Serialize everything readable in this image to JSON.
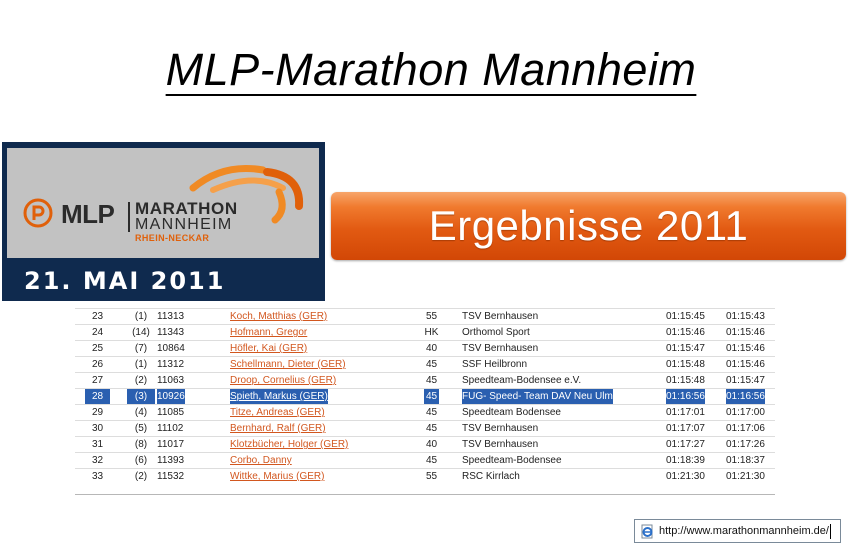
{
  "page": {
    "title": "MLP-Marathon Mannheim"
  },
  "logo": {
    "brand": "MLP",
    "line1": "MARATHON",
    "line2": "MANNHEIM",
    "region": "RHEIN-NECKAR",
    "date": "21. MAI 2011",
    "colors": {
      "panel": "#0f2a4e",
      "inner": "#c2c2c2",
      "accent": "#f08a24"
    }
  },
  "results_button": {
    "label": "Ergebnisse 2011",
    "color": "#e25a12"
  },
  "table": {
    "rows": [
      {
        "pos": "23",
        "ak": "(1)",
        "nr": "11313",
        "name": "Koch, Matthias (GER)",
        "cls": "55",
        "club": "TSV Bernhausen",
        "t1": "01:15:45",
        "t2": "01:15:43",
        "highlighted": false
      },
      {
        "pos": "24",
        "ak": "(14)",
        "nr": "11343",
        "name": "Hofmann, Gregor",
        "cls": "HK",
        "club": "Orthomol Sport",
        "t1": "01:15:46",
        "t2": "01:15:46",
        "highlighted": false
      },
      {
        "pos": "25",
        "ak": "(7)",
        "nr": "10864",
        "name": "Höfler, Kai (GER)",
        "cls": "40",
        "club": "TSV Bernhausen",
        "t1": "01:15:47",
        "t2": "01:15:46",
        "highlighted": false
      },
      {
        "pos": "26",
        "ak": "(1)",
        "nr": "11312",
        "name": "Schellmann, Dieter (GER)",
        "cls": "45",
        "club": "SSF Heilbronn",
        "t1": "01:15:48",
        "t2": "01:15:46",
        "highlighted": false
      },
      {
        "pos": "27",
        "ak": "(2)",
        "nr": "11063",
        "name": "Droop, Cornelius (GER)",
        "cls": "45",
        "club": "Speedteam-Bodensee e.V.",
        "t1": "01:15:48",
        "t2": "01:15:47",
        "highlighted": false
      },
      {
        "pos": "28",
        "ak": "(3)",
        "nr": "10926",
        "name": "Spieth, Markus (GER)",
        "cls": "45",
        "club": "FUG- Speed- Team DAV Neu Ulm",
        "t1": "01:16:56",
        "t2": "01:16:56",
        "highlighted": true
      },
      {
        "pos": "29",
        "ak": "(4)",
        "nr": "11085",
        "name": "Titze, Andreas (GER)",
        "cls": "45",
        "club": "Speedteam Bodensee",
        "t1": "01:17:01",
        "t2": "01:17:00",
        "highlighted": false
      },
      {
        "pos": "30",
        "ak": "(5)",
        "nr": "11102",
        "name": "Bernhard, Ralf (GER)",
        "cls": "45",
        "club": "TSV Bernhausen",
        "t1": "01:17:07",
        "t2": "01:17:06",
        "highlighted": false
      },
      {
        "pos": "31",
        "ak": "(8)",
        "nr": "11017",
        "name": "Klotzbücher, Holger (GER)",
        "cls": "40",
        "club": "TSV Bernhausen",
        "t1": "01:17:27",
        "t2": "01:17:26",
        "highlighted": false
      },
      {
        "pos": "32",
        "ak": "(6)",
        "nr": "11393",
        "name": "Corbo, Danny",
        "cls": "45",
        "club": "Speedteam-Bodensee",
        "t1": "01:18:39",
        "t2": "01:18:37",
        "highlighted": false
      },
      {
        "pos": "33",
        "ak": "(2)",
        "nr": "11532",
        "name": "Wittke, Marius (GER)",
        "cls": "55",
        "club": "RSC Kirrlach",
        "t1": "01:21:30",
        "t2": "01:21:30",
        "highlighted": false
      }
    ],
    "colors": {
      "link": "#d2571f",
      "highlight": "#2a5fb0"
    }
  },
  "urlbar": {
    "value": "http://www.marathonmannheim.de/",
    "icon": "ie-page-icon"
  }
}
